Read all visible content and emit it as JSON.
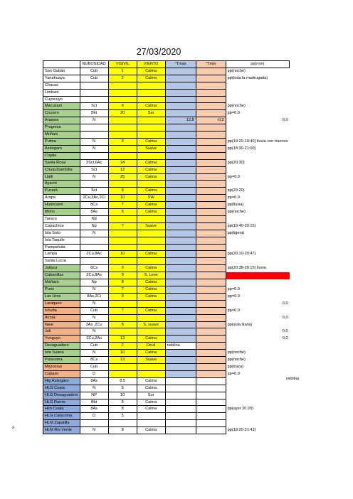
{
  "title": "27/03/2020",
  "side_marks": {
    "x": "x",
    "nobline": "neblina"
  },
  "headers": [
    "",
    "NUBOSIDAD",
    "VISIVIL",
    "VIENTO",
    "°Tmáx",
    "°Tmin",
    "pp(mm)"
  ],
  "rows": [
    {
      "station": "San Gabán",
      "bg": "white",
      "nub": "Cub",
      "vis": "1",
      "wind": "Calma",
      "tmax": "",
      "tmin": "",
      "pp": "pp(noche)"
    },
    {
      "station": "Yanahuaya",
      "bg": "white",
      "nub": "Cub",
      "vis": "2",
      "wind": "Calma",
      "tmax": "",
      "tmin": "",
      "pp": "pp(toda la madrugada)"
    },
    {
      "station": "Chacas",
      "bg": "white",
      "nub": "",
      "vis": "",
      "wind": "",
      "tmax": "",
      "tmin": "",
      "pp": ""
    },
    {
      "station": "Limbani",
      "bg": "white",
      "nub": "",
      "vis": "",
      "wind": "",
      "tmax": "",
      "tmin": "",
      "pp": ""
    },
    {
      "station": "Cuyocuyo",
      "bg": "white",
      "nub": "",
      "vis": "",
      "wind": "",
      "tmax": "",
      "tmin": "",
      "pp": ""
    },
    {
      "station": "Macusani",
      "bg": "green",
      "nub": "Sct",
      "vis": "6",
      "wind": "Calma",
      "tmax": "",
      "tmin": "",
      "pp": "pp(noche)"
    },
    {
      "station": "Crucero",
      "bg": "green",
      "nub": "Bkt",
      "vis": "20",
      "wind": "Sur",
      "tmax": "",
      "tmin": "",
      "pp": "pp=0.0"
    },
    {
      "station": "Ananea",
      "bg": "green",
      "nub": "N",
      "vis": "",
      "wind": "",
      "tmax": "12,8",
      "tmin": "-0,2",
      "pp": "0,0"
    },
    {
      "station": "Progreso",
      "bg": "green",
      "nub": "",
      "vis": "",
      "wind": "",
      "tmax": "",
      "tmin": "",
      "pp": ""
    },
    {
      "station": "Muñani",
      "bg": "green",
      "nub": "",
      "vis": "",
      "wind": "",
      "tmax": "",
      "tmin": "",
      "pp": ""
    },
    {
      "station": "Putina",
      "bg": "green",
      "nub": "N",
      "vis": "6",
      "wind": "Calma",
      "tmax": "",
      "tmin": "",
      "pp": "pp(19:20-19:40) lluvia con truenos"
    },
    {
      "station": "Azángaro",
      "bg": "green",
      "nub": "N",
      "vis": "",
      "wind": "Suave",
      "tmax": "",
      "tmin": "",
      "pp": "pp(18:30-21:00)"
    },
    {
      "station": "Cojata",
      "bg": "green",
      "nub": "",
      "vis": "",
      "wind": "",
      "tmax": "",
      "tmin": "",
      "pp": ""
    },
    {
      "station": "Santa Rosa",
      "bg": "green",
      "nub": "3Sct,6Ac",
      "vis": "24",
      "wind": "Calma",
      "tmax": "",
      "tmin": "",
      "pp": "pp(20:30)"
    },
    {
      "station": "Chuquibambilla",
      "bg": "green",
      "nub": "Sct",
      "vis": "12",
      "wind": "Calma",
      "tmax": "",
      "tmin": "",
      "pp": ""
    },
    {
      "station": "Llalli",
      "bg": "green",
      "nub": "N",
      "vis": "25",
      "wind": "Calma",
      "tmax": "",
      "tmin": "",
      "pp": "pp=0.0"
    },
    {
      "station": "Ayaviri",
      "bg": "green",
      "nub": "",
      "vis": "",
      "wind": "",
      "tmax": "",
      "tmin": "",
      "pp": ""
    },
    {
      "station": "Pucará",
      "bg": "green",
      "nub": "Sct",
      "vis": "8",
      "wind": "Calma",
      "tmax": "",
      "tmin": "",
      "pp": "pp(20:20)"
    },
    {
      "station": "Arapa",
      "bg": "white",
      "nub": "2Cu,2Ac,2Ci",
      "vis": "10",
      "wind": "SW",
      "tmax": "",
      "tmin": "",
      "pp": "pp=0.0"
    },
    {
      "station": "Huancané",
      "bg": "green",
      "nub": "8Cs",
      "vis": "7",
      "wind": "Calma",
      "tmax": "",
      "tmin": "",
      "pp": "pp(lluvia)"
    },
    {
      "station": "Moho",
      "bg": "green",
      "nub": "8As",
      "vis": "8",
      "wind": "Calma",
      "tmax": "",
      "tmin": "",
      "pp": "pp(noche)"
    },
    {
      "station": "Taraco",
      "bg": "white",
      "nub": "Nd",
      "vis": "",
      "wind": "",
      "tmax": "",
      "tmin": "",
      "pp": ""
    },
    {
      "station": "Capachica",
      "bg": "white",
      "nub": "Np",
      "vis": "7",
      "wind": "Suave",
      "tmax": "",
      "tmin": "",
      "pp": "pp(19:40-20:15)"
    },
    {
      "station": "Isla Soto",
      "bg": "white",
      "nub": "N",
      "vis": "",
      "wind": "",
      "tmax": "",
      "tmin": "",
      "pp": "pp(ligera)"
    },
    {
      "station": "Isla Taquile",
      "bg": "white",
      "nub": "",
      "vis": "",
      "wind": "",
      "tmax": "",
      "tmin": "",
      "pp": ""
    },
    {
      "station": "Pampahuta",
      "bg": "white",
      "nub": "",
      "vis": "",
      "wind": "",
      "tmax": "",
      "tmin": "",
      "pp": ""
    },
    {
      "station": "Lampa",
      "bg": "white",
      "nub": "2Cu,8Ac",
      "vis": "10",
      "wind": "Calma",
      "tmax": "",
      "tmin": "",
      "pp": "pp(20:10-20:47)"
    },
    {
      "station": "Santa Lucía",
      "bg": "white",
      "nub": "",
      "vis": "",
      "wind": "",
      "tmax": "",
      "tmin": "",
      "pp": ""
    },
    {
      "station": "Juliaca",
      "bg": "green",
      "nub": "8Cs",
      "vis": "9",
      "wind": "Calma",
      "tmax": "",
      "tmin": "",
      "pp": "pp(20:38-20:15) lluvia"
    },
    {
      "station": "Cabanillas",
      "bg": "green",
      "nub": "2Cu,8As",
      "vis": "9",
      "wind": "S, Leve",
      "tmax": "",
      "tmin": "",
      "pp": ""
    },
    {
      "station": "Mañazo",
      "bg": "green",
      "nub": "Np",
      "vis": "8",
      "wind": "Calma",
      "tmax": "",
      "tmin": "",
      "pp": ""
    },
    {
      "station": "Puno",
      "bg": "green",
      "nub": "N",
      "vis": "7",
      "wind": "Calma",
      "tmax": "",
      "tmin": "",
      "pp": "pp=0.0"
    },
    {
      "station": "Las Uros",
      "bg": "green",
      "nub": "8As,2Ci",
      "vis": "9",
      "wind": "Calma",
      "tmax": "",
      "tmin": "",
      "pp": "pp=0.0"
    },
    {
      "station": "Laraqueri",
      "bg": "tan",
      "nub": "N",
      "vis": "",
      "wind": "",
      "tmax": "",
      "tmin": "",
      "pp": "0,0"
    },
    {
      "station": "Ichuña",
      "bg": "tan",
      "nub": "Cub",
      "vis": "7",
      "wind": "Calma",
      "tmax": "",
      "tmin": "",
      "pp": "pp=0.0"
    },
    {
      "station": "Ácora",
      "bg": "tan",
      "nub": "N",
      "vis": "",
      "wind": "",
      "tmax": "",
      "tmin": "",
      "pp": "0,0"
    },
    {
      "station": "Ilave",
      "bg": "tan",
      "nub": "3As ,2Cu",
      "vis": "8",
      "wind": "S, suave",
      "tmax": "",
      "tmin": "",
      "pp": "pp(sola lluvia)"
    },
    {
      "station": "Juli",
      "bg": "tan",
      "nub": "N",
      "vis": "",
      "wind": "",
      "tmax": "",
      "tmin": "",
      "pp": "0,0"
    },
    {
      "station": "Yunguyo",
      "bg": "tan",
      "nub": "2Cu,2Ac",
      "vis": "13",
      "wind": "Calma",
      "tmax": "",
      "tmin": "",
      "pp": "0,0"
    },
    {
      "station": "Desaguadero",
      "bg": "green",
      "nub": "Cub",
      "vis": "2",
      "wind": "Devil",
      "tmax": "neblina",
      "tmin": "",
      "pp": ""
    },
    {
      "station": "Isla Suana",
      "bg": "green",
      "nub": "N",
      "vis": "10",
      "wind": "Calma",
      "tmax": "",
      "tmin": "",
      "pp": "pp(noche)"
    },
    {
      "station": "Pisacoma",
      "bg": "green",
      "nub": "8Cs",
      "vis": "13",
      "wind": "Suave",
      "tmax": "",
      "tmin": "",
      "pp": "pp(noche)"
    },
    {
      "station": "Mazocruz",
      "bg": "tan",
      "nub": "Cub",
      "vis": "",
      "wind": "",
      "tmax": "",
      "tmin": "",
      "pp": "pp(traza)"
    },
    {
      "station": "Capazo",
      "bg": "tan",
      "nub": "D",
      "vis": "",
      "wind": "",
      "tmax": "",
      "tmin": "",
      "pp": "pp=0.0"
    },
    {
      "station": "Hlg Azángaro",
      "bg": "blue",
      "nub": "8As",
      "vis": "8.5",
      "wind": "Calma",
      "tmax": "",
      "tmin": "",
      "pp": ""
    },
    {
      "station": "HLG Coata",
      "bg": "blue",
      "nub": "N",
      "vis": "5",
      "wind": "Calma",
      "tmax": "",
      "tmin": "",
      "pp": ""
    },
    {
      "station": "HLG Desaguadero",
      "bg": "blue",
      "nub": "NP",
      "vis": "10",
      "wind": "Sur",
      "tmax": "",
      "tmin": "",
      "pp": ""
    },
    {
      "station": "HLG Ramis",
      "bg": "blue",
      "nub": "Bkt",
      "vis": "5",
      "wind": "Calma",
      "tmax": "",
      "tmin": "",
      "pp": ""
    },
    {
      "station": "Hlm Coata",
      "bg": "blue",
      "nub": "8As",
      "vis": "8",
      "wind": "Calma",
      "tmax": "",
      "tmin": "",
      "pp": "pp(ayer 20:20)"
    },
    {
      "station": "HLG Calacoma",
      "bg": "blue",
      "nub": "D",
      "vis": "5",
      "wind": "",
      "tmax": "",
      "tmin": "",
      "pp": ""
    },
    {
      "station": "HLM Zapatilla",
      "bg": "blue",
      "nub": "",
      "vis": "",
      "wind": "",
      "tmax": "",
      "tmin": "",
      "pp": ""
    },
    {
      "station": "HLM Rio Verde",
      "bg": "blue",
      "nub": "N",
      "vis": "8",
      "wind": "Calma",
      "tmax": "",
      "tmin": "",
      "pp": "pp(18:20-21:43)"
    }
  ]
}
